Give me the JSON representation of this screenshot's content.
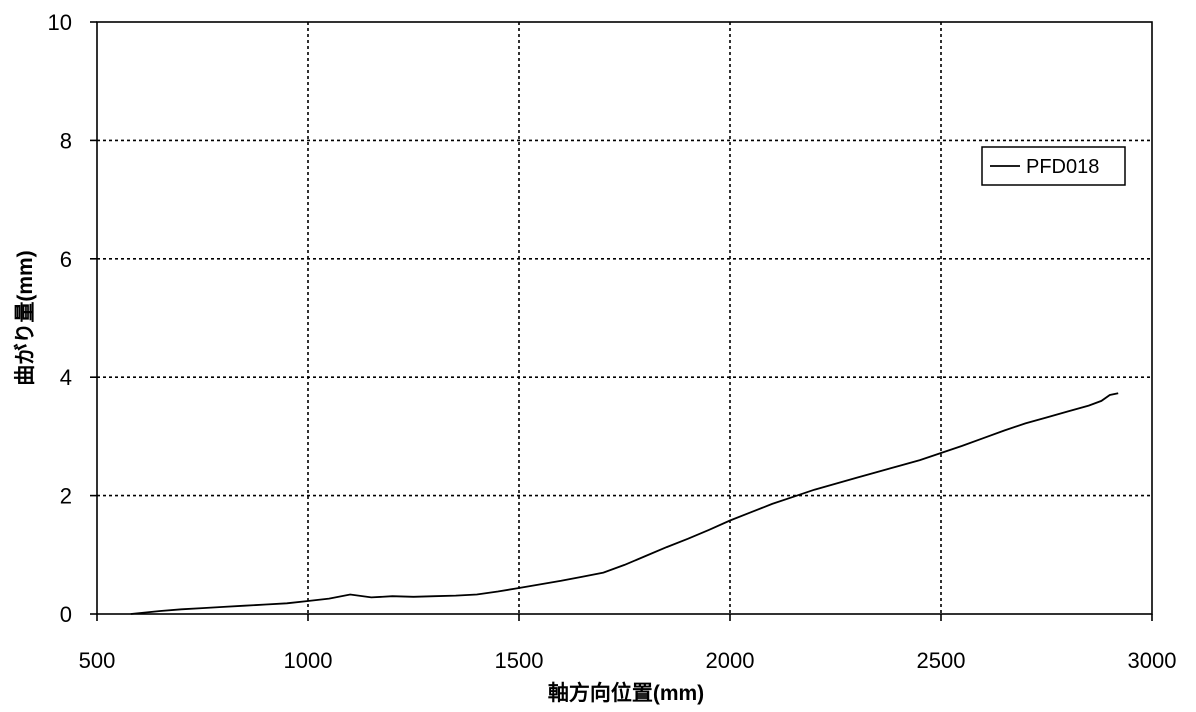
{
  "chart_data": {
    "type": "line",
    "xlabel": "軸方向位置(mm)",
    "ylabel": "曲がり量(mm)",
    "xlim": [
      500,
      3000
    ],
    "ylim": [
      0,
      10
    ],
    "x_ticks": [
      500,
      1000,
      1500,
      2000,
      2500,
      3000
    ],
    "y_ticks": [
      0,
      2,
      4,
      6,
      8,
      10
    ],
    "grid": true,
    "legend_position": "top-right",
    "series": [
      {
        "name": "PFD018",
        "color": "#000000",
        "x": [
          580,
          650,
          700,
          750,
          800,
          850,
          900,
          950,
          1000,
          1050,
          1100,
          1150,
          1200,
          1250,
          1300,
          1350,
          1400,
          1450,
          1500,
          1550,
          1600,
          1650,
          1700,
          1750,
          1800,
          1850,
          1900,
          1950,
          2000,
          2050,
          2100,
          2150,
          2200,
          2250,
          2300,
          2350,
          2400,
          2450,
          2500,
          2550,
          2600,
          2650,
          2700,
          2750,
          2800,
          2850,
          2880,
          2900,
          2920
        ],
        "y": [
          0.0,
          0.05,
          0.08,
          0.1,
          0.12,
          0.14,
          0.16,
          0.18,
          0.22,
          0.26,
          0.33,
          0.28,
          0.3,
          0.29,
          0.3,
          0.31,
          0.33,
          0.38,
          0.44,
          0.5,
          0.56,
          0.63,
          0.7,
          0.83,
          0.98,
          1.13,
          1.27,
          1.42,
          1.58,
          1.72,
          1.86,
          1.98,
          2.1,
          2.2,
          2.3,
          2.4,
          2.5,
          2.6,
          2.72,
          2.84,
          2.97,
          3.1,
          3.22,
          3.32,
          3.42,
          3.52,
          3.6,
          3.7,
          3.73
        ]
      }
    ]
  }
}
